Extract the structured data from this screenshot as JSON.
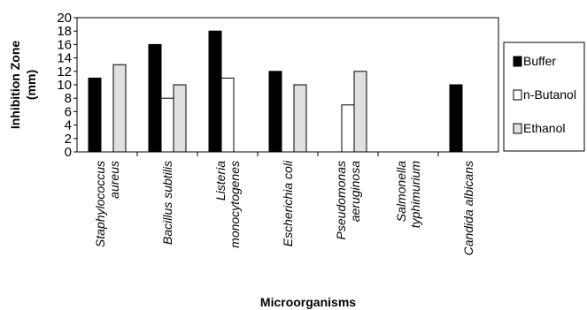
{
  "chart_data": {
    "type": "bar",
    "categories": [
      [
        "Staphylococcus",
        "aureus"
      ],
      [
        "Bacillus subtilis"
      ],
      [
        "Listeria",
        "monocytogenes"
      ],
      [
        "Escherichia coli"
      ],
      [
        "Pseudomonas",
        "aeruginosa"
      ],
      [
        "Salmonella",
        "typhimurium"
      ],
      [
        "Candida albicans"
      ]
    ],
    "series": [
      {
        "name": "Buffer",
        "color": "#000000",
        "values": [
          11,
          16,
          18,
          12,
          0,
          0,
          10
        ]
      },
      {
        "name": "n-Butanol",
        "color": "#ffffff",
        "values": [
          0,
          8,
          11,
          0,
          7,
          0,
          0
        ]
      },
      {
        "name": "Ethanol",
        "color": "#e0e0e0",
        "values": [
          13,
          10,
          0,
          10,
          12,
          0,
          0
        ]
      }
    ],
    "xlabel": "Microorganisms",
    "ylabel_lines": [
      "Inhibition Zone",
      "(mm)"
    ],
    "ylim": [
      0,
      20
    ],
    "yticks": [
      0,
      2,
      4,
      6,
      8,
      10,
      12,
      14,
      16,
      18,
      20
    ],
    "legend_position": "right",
    "grid": false
  }
}
